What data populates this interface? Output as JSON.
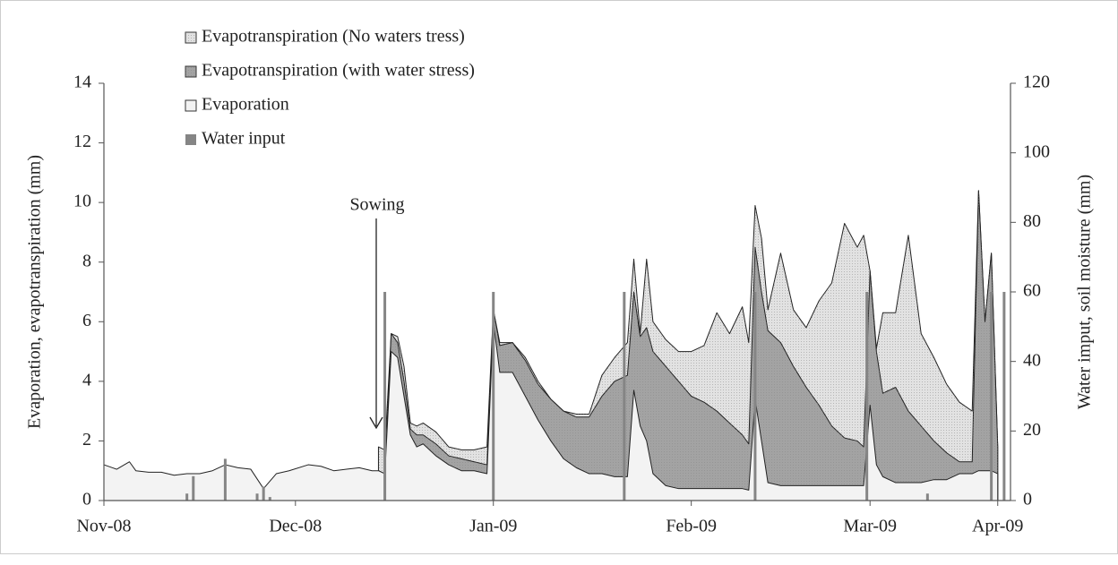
{
  "chart_data": {
    "type": "area",
    "y_label": "Evaporation, evapotranspiration (mm)",
    "y2_label": "Water imput, soil moisture (mm)",
    "annotation": "Sowing",
    "legend": "top-left",
    "xlim": [
      0,
      142
    ],
    "xticks": [
      {
        "value": 0,
        "label": "Nov-08"
      },
      {
        "value": 30,
        "label": "Dec-08"
      },
      {
        "value": 61,
        "label": "Jan-09"
      },
      {
        "value": 92,
        "label": "Feb-09"
      },
      {
        "value": 120,
        "label": "Mar-09"
      },
      {
        "value": 140,
        "label": "Apr-09"
      }
    ],
    "ylim": [
      0,
      14
    ],
    "yticks": [
      0,
      2,
      4,
      6,
      8,
      10,
      12,
      14
    ],
    "y2lim": [
      0,
      120
    ],
    "y2ticks": [
      0,
      20,
      40,
      60,
      80,
      100,
      120
    ],
    "x": [
      0,
      2,
      4,
      5,
      7,
      9,
      11,
      13,
      15,
      17,
      19,
      21,
      23,
      25,
      27,
      29,
      32,
      34,
      36,
      38,
      40,
      42,
      43,
      44,
      45,
      46,
      47,
      48,
      49,
      50,
      52,
      54,
      56,
      58,
      60,
      61,
      62,
      64,
      66,
      68,
      70,
      72,
      74,
      76,
      78,
      80,
      82,
      83,
      84,
      85,
      86,
      88,
      90,
      92,
      94,
      96,
      98,
      100,
      101,
      102,
      103,
      104,
      106,
      108,
      110,
      112,
      114,
      116,
      118,
      119,
      120,
      121,
      122,
      124,
      126,
      128,
      130,
      132,
      134,
      136,
      137,
      138,
      139,
      140
    ],
    "series": [
      {
        "name": "Evapotranspiration (No waters tress)",
        "color": "#e2e2e2",
        "values": [
          null,
          null,
          null,
          null,
          null,
          null,
          null,
          null,
          null,
          null,
          null,
          null,
          null,
          null,
          null,
          null,
          null,
          null,
          null,
          null,
          null,
          null,
          1.8,
          1.7,
          5.6,
          5.5,
          4.5,
          2.6,
          2.5,
          2.6,
          2.3,
          1.8,
          1.7,
          1.7,
          1.8,
          6.4,
          5.3,
          5.3,
          4.8,
          4.0,
          3.4,
          3.0,
          2.9,
          2.9,
          4.2,
          4.8,
          5.3,
          8.1,
          5.6,
          8.1,
          6.0,
          5.4,
          5.0,
          5.0,
          5.2,
          6.3,
          5.6,
          6.5,
          5.3,
          9.9,
          8.8,
          6.4,
          8.3,
          6.4,
          5.8,
          6.7,
          7.3,
          9.3,
          8.5,
          8.9,
          7.7,
          5.1,
          6.3,
          6.3,
          8.9,
          5.6,
          4.8,
          3.9,
          3.3,
          3.0,
          10.4,
          6.0,
          8.3,
          1.8
        ]
      },
      {
        "name": "Evapotranspiration (with water stress)",
        "color": "#a3a3a3",
        "values": [
          null,
          null,
          null,
          null,
          null,
          null,
          null,
          null,
          null,
          null,
          null,
          null,
          null,
          null,
          null,
          null,
          null,
          null,
          null,
          null,
          null,
          null,
          1.0,
          0.9,
          5.6,
          5.3,
          4.0,
          2.4,
          2.2,
          2.2,
          1.9,
          1.5,
          1.4,
          1.3,
          1.2,
          6.4,
          5.2,
          5.3,
          4.7,
          3.9,
          3.4,
          3.0,
          2.8,
          2.8,
          3.5,
          4.0,
          4.2,
          7.0,
          5.5,
          5.8,
          5.0,
          4.5,
          4.0,
          3.5,
          3.3,
          3.0,
          2.6,
          2.2,
          1.9,
          8.5,
          7.0,
          5.7,
          5.3,
          4.5,
          3.8,
          3.2,
          2.5,
          2.1,
          2.0,
          1.8,
          7.7,
          5.0,
          3.6,
          3.8,
          3.0,
          2.5,
          2.0,
          1.6,
          1.3,
          1.3,
          10.4,
          6.0,
          8.3,
          1.8
        ]
      },
      {
        "name": "Evaporation",
        "color": "#f3f3f3",
        "values": [
          1.2,
          1.05,
          1.3,
          1.0,
          0.95,
          0.95,
          0.85,
          0.9,
          0.9,
          1.0,
          1.2,
          1.1,
          1.05,
          0.4,
          0.9,
          1.0,
          1.2,
          1.15,
          1.0,
          1.05,
          1.1,
          1.0,
          1.0,
          0.9,
          5.0,
          4.8,
          3.5,
          2.2,
          1.8,
          1.9,
          1.5,
          1.2,
          1.0,
          1.0,
          0.9,
          6.0,
          4.3,
          4.3,
          3.5,
          2.7,
          2.0,
          1.4,
          1.1,
          0.9,
          0.9,
          0.8,
          0.8,
          3.7,
          2.5,
          2.0,
          0.9,
          0.5,
          0.4,
          0.4,
          0.4,
          0.4,
          0.4,
          0.4,
          0.35,
          3.4,
          2.0,
          0.6,
          0.5,
          0.5,
          0.5,
          0.5,
          0.5,
          0.5,
          0.5,
          0.5,
          3.2,
          1.2,
          0.8,
          0.6,
          0.6,
          0.6,
          0.7,
          0.7,
          0.9,
          0.9,
          1.0,
          1.0,
          1.0,
          0.9
        ]
      },
      {
        "name": "Water input",
        "color": "#858585",
        "type": "bar",
        "axis": "y2",
        "x": [
          13,
          14,
          19,
          24,
          25,
          26,
          44,
          61,
          81.5,
          102,
          119.5,
          129,
          139,
          141
        ],
        "values": [
          2,
          7,
          12,
          2,
          4,
          1,
          60,
          60,
          60,
          60,
          60,
          2,
          60,
          60
        ]
      }
    ]
  }
}
